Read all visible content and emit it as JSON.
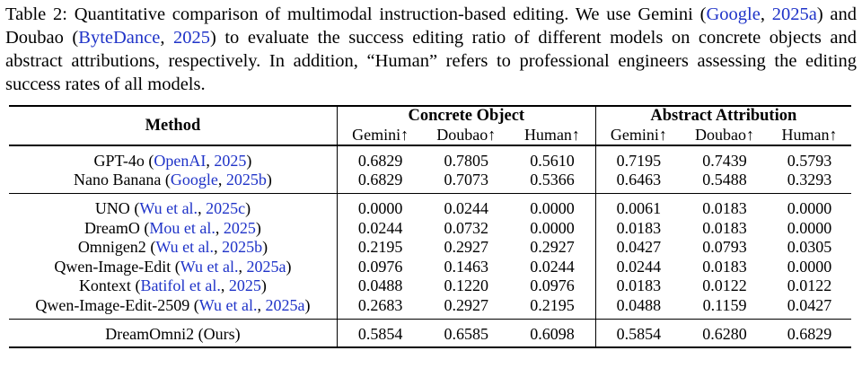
{
  "caption": {
    "label": "Table 2:",
    "text_1": " Quantitative comparison of multimodal instruction-based editing. We use Gemini (",
    "cite_1a": "Google",
    "sep_1": ", ",
    "cite_1b": "2025a",
    "text_2": ") and Doubao (",
    "cite_2a": "ByteDance",
    "sep_2": ", ",
    "cite_2b": "2025",
    "text_3": ") to evaluate the success editing ratio of different models on concrete objects and abstract attributions, respectively. In addition, “Human” refers to professional engineers assessing the editing success rates of all models."
  },
  "table": {
    "method_header": "Method",
    "group_headers": [
      "Concrete Object",
      "Abstract Attribution"
    ],
    "sub_headers": [
      "Gemini↑",
      "Doubao↑",
      "Human↑",
      "Gemini↑",
      "Doubao↑",
      "Human↑"
    ],
    "sections": [
      {
        "rows": [
          {
            "name": "GPT-4o",
            "cite_a": "OpenAI",
            "cite_b": "2025",
            "values": [
              "0.6829",
              "0.7805",
              "0.5610",
              "0.7195",
              "0.7439",
              "0.5793"
            ]
          },
          {
            "name": "Nano Banana",
            "cite_a": "Google",
            "cite_b": "2025b",
            "values": [
              "0.6829",
              "0.7073",
              "0.5366",
              "0.6463",
              "0.5488",
              "0.3293"
            ]
          }
        ]
      },
      {
        "rows": [
          {
            "name": "UNO",
            "cite_a": "Wu et al.",
            "cite_b": "2025c",
            "values": [
              "0.0000",
              "0.0244",
              "0.0000",
              "0.0061",
              "0.0183",
              "0.0000"
            ]
          },
          {
            "name": "DreamO",
            "cite_a": "Mou et al.",
            "cite_b": "2025",
            "values": [
              "0.0244",
              "0.0732",
              "0.0000",
              "0.0183",
              "0.0183",
              "0.0000"
            ]
          },
          {
            "name": "Omnigen2",
            "cite_a": "Wu et al.",
            "cite_b": "2025b",
            "values": [
              "0.2195",
              "0.2927",
              "0.2927",
              "0.0427",
              "0.0793",
              "0.0305"
            ]
          },
          {
            "name": "Qwen-Image-Edit",
            "cite_a": "Wu et al.",
            "cite_b": "2025a",
            "values": [
              "0.0976",
              "0.1463",
              "0.0244",
              "0.0244",
              "0.0183",
              "0.0000"
            ]
          },
          {
            "name": "Kontext",
            "cite_a": "Batifol et al.",
            "cite_b": "2025",
            "values": [
              "0.0488",
              "0.1220",
              "0.0976",
              "0.0183",
              "0.0122",
              "0.0122"
            ]
          },
          {
            "name": "Qwen-Image-Edit-2509",
            "cite_a": "Wu et al.",
            "cite_b": "2025a",
            "values": [
              "0.2683",
              "0.2927",
              "0.2195",
              "0.0488",
              "0.1159",
              "0.0427"
            ]
          }
        ]
      },
      {
        "rows": [
          {
            "name": "DreamOmni2 (Ours)",
            "values": [
              "0.5854",
              "0.6585",
              "0.6098",
              "0.5854",
              "0.6280",
              "0.6829"
            ],
            "bold_values": true
          }
        ]
      }
    ]
  }
}
